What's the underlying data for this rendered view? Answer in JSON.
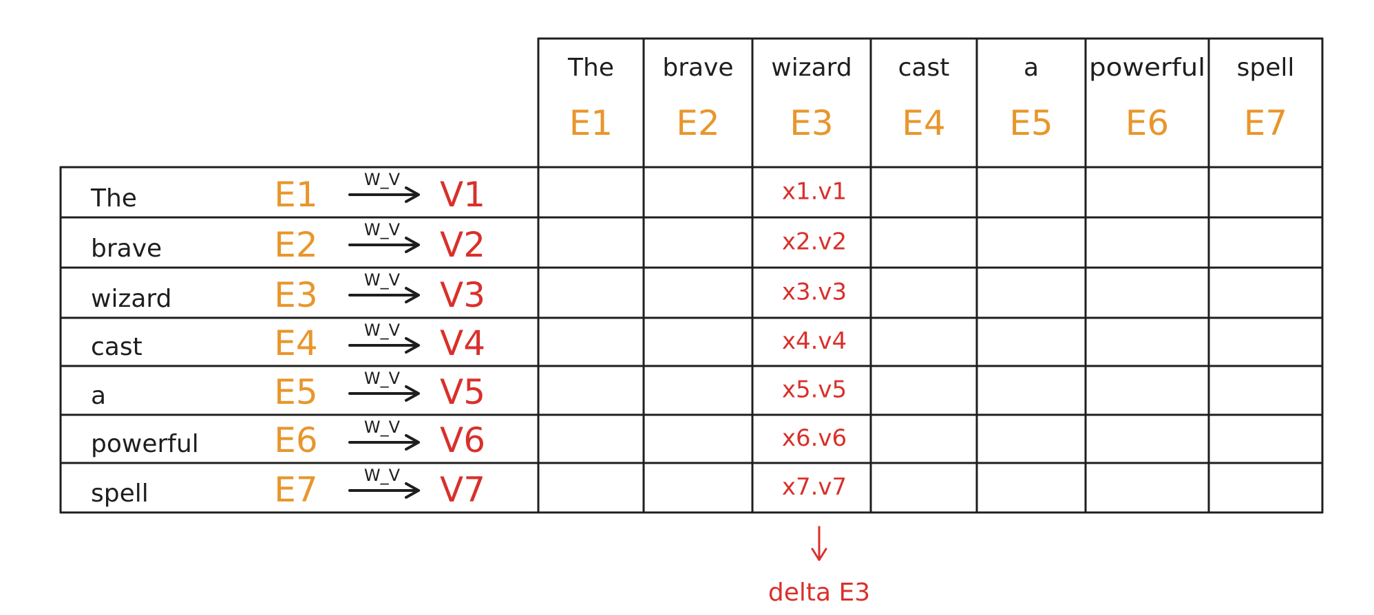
{
  "columns": [
    {
      "word": "The",
      "embedding": "E1"
    },
    {
      "word": "brave",
      "embedding": "E2"
    },
    {
      "word": "wizard",
      "embedding": "E3"
    },
    {
      "word": "cast",
      "embedding": "E4"
    },
    {
      "word": "a",
      "embedding": "E5"
    },
    {
      "word": "powerful",
      "embedding": "E6"
    },
    {
      "word": "spell",
      "embedding": "E7"
    }
  ],
  "rows": [
    {
      "word": "The",
      "embedding": "E1",
      "weight_label": "W_V",
      "value": "V1",
      "product": "x1.v1"
    },
    {
      "word": "brave",
      "embedding": "E2",
      "weight_label": "W_V",
      "value": "V2",
      "product": "x2.v2"
    },
    {
      "word": "wizard",
      "embedding": "E3",
      "weight_label": "W_V",
      "value": "V3",
      "product": "x3.v3"
    },
    {
      "word": "cast",
      "embedding": "E4",
      "weight_label": "W_V",
      "value": "V4",
      "product": "x4.v4"
    },
    {
      "word": "a",
      "embedding": "E5",
      "weight_label": "W_V",
      "value": "V5",
      "product": "x5.v5"
    },
    {
      "word": "powerful",
      "embedding": "E6",
      "weight_label": "W_V",
      "value": "V6",
      "product": "x6.v6"
    },
    {
      "word": "spell",
      "embedding": "E7",
      "weight_label": "W_V",
      "value": "V7",
      "product": "x7.v7"
    }
  ],
  "highlight_column": "E3",
  "result_label": "delta E3",
  "colors": {
    "ink": "#1e1e1e",
    "embedding": "#e8962c",
    "value": "#d9302b"
  }
}
